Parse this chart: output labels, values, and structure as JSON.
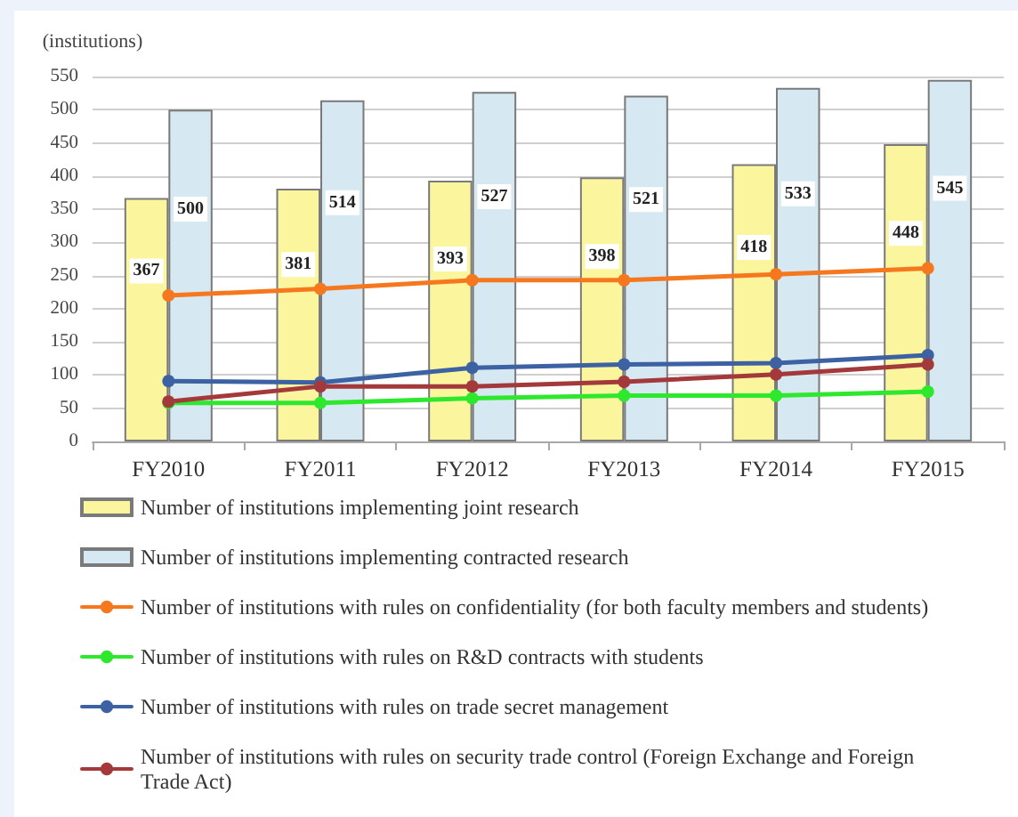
{
  "chart_data": {
    "type": "bar",
    "ylabel": "(institutions)",
    "categories": [
      "FY2010",
      "FY2011",
      "FY2012",
      "FY2013",
      "FY2014",
      "FY2015"
    ],
    "series": [
      {
        "name": "Number of institutions implementing joint research",
        "color": "#fbf59e",
        "values": [
          367,
          381,
          393,
          398,
          418,
          448
        ],
        "value_labels": [
          "367",
          "381",
          "393",
          "398",
          "418",
          "448"
        ]
      },
      {
        "name": "Number of institutions implementing contracted research",
        "color": "#d6e8f1",
        "values": [
          500,
          514,
          527,
          521,
          533,
          545
        ],
        "value_labels": [
          "500",
          "514",
          "527",
          "521",
          "533",
          "545"
        ]
      },
      {
        "name": "Number of institutions with rules on confidentiality (for both faculty members and students)",
        "type": "line",
        "color": "#f5781e",
        "values": [
          220,
          230,
          243,
          243,
          252,
          261
        ]
      },
      {
        "name": "Number of institutions with rules on R&D contracts with students",
        "type": "line",
        "color": "#2ee82e",
        "values": [
          58,
          58,
          65,
          69,
          69,
          75
        ]
      },
      {
        "name": "Number of institutions with rules on trade secret management",
        "type": "line",
        "color": "#3d62a3",
        "values": [
          91,
          89,
          111,
          116,
          118,
          130
        ]
      },
      {
        "name": "Number of institutions with rules on security trade control (Foreign Exchange and Foreign Trade Act)",
        "type": "line",
        "color": "#a3393b",
        "values": [
          60,
          83,
          83,
          90,
          101,
          116
        ]
      }
    ],
    "ylim": [
      0,
      550
    ],
    "yticks": [
      0,
      50,
      100,
      150,
      200,
      250,
      300,
      350,
      400,
      450,
      500,
      550
    ],
    "grid": "y",
    "legend": "bottom",
    "marker": "circle"
  }
}
